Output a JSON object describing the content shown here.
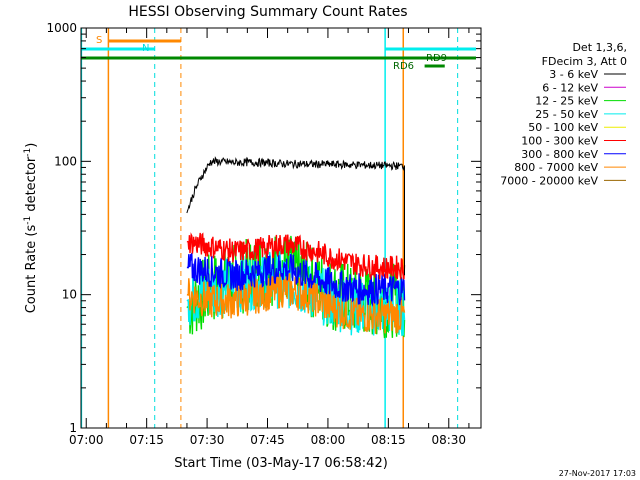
{
  "chart_data": {
    "type": "line",
    "title": "HESSI Observing Summary Count Rates",
    "xlabel": "Start Time (03-May-17 06:58:42)",
    "ylabel_main": "Count Rate (s",
    "ylabel_sup1": "-1",
    "ylabel_mid": " detector",
    "ylabel_sup2": "-1",
    "ylabel_end": ")",
    "y_scale": "log",
    "xlim": [
      "06:58:42",
      "08:37"
    ],
    "ylim": [
      1,
      1000
    ],
    "x_ticks": [
      "07:00",
      "07:15",
      "07:30",
      "07:45",
      "08:00",
      "08:15",
      "08:30"
    ],
    "y_ticks": [
      "1",
      "10",
      "100",
      "1000"
    ],
    "x_tick_minutes": [
      0,
      15,
      30,
      45,
      60,
      75,
      90
    ],
    "y_tick_values": [
      1,
      10,
      100,
      1000
    ],
    "legend_title_1": "Det 1,3,6,",
    "legend_title_2": "FDecim 3, Att 0",
    "legend_position": "right",
    "grid": false,
    "series": [
      {
        "name": "3 - 6 keV",
        "color": "#000000",
        "start": "07:25",
        "end": "08:19",
        "values": [
          41,
          100,
          98,
          98,
          96,
          95,
          95,
          94,
          93,
          92
        ]
      },
      {
        "name": "6 - 12 keV",
        "color": "#cc00cc",
        "values": []
      },
      {
        "name": "12 - 25 keV",
        "color": "#00dd00",
        "start": "07:25",
        "end": "08:19",
        "values": [
          8,
          11,
          13,
          15,
          16,
          13,
          10,
          9,
          9,
          9
        ]
      },
      {
        "name": "25 - 50 keV",
        "color": "#00eeee",
        "start": "07:25",
        "end": "08:19",
        "values": [
          9,
          11,
          12,
          13,
          13,
          11,
          9,
          8,
          8,
          8
        ]
      },
      {
        "name": "50 - 100 keV",
        "color": "#eeee00",
        "values": []
      },
      {
        "name": "100 - 300 keV",
        "color": "#ff0000",
        "start": "07:25",
        "end": "08:19",
        "values": [
          25,
          23,
          21,
          22,
          24,
          22,
          19,
          17,
          16,
          16
        ]
      },
      {
        "name": "300 - 800 keV",
        "color": "#0000ff",
        "start": "07:25",
        "end": "08:19",
        "values": [
          16,
          15,
          14,
          15,
          16,
          14,
          12,
          11,
          11,
          11
        ]
      },
      {
        "name": "800 - 7000 keV",
        "color": "#ff8800",
        "start": "07:25",
        "end": "08:19",
        "values": [
          10,
          9,
          9,
          10,
          11,
          10,
          8,
          7,
          7,
          7
        ]
      },
      {
        "name": "7000 - 20000 keV",
        "color": "#996600",
        "values": []
      }
    ],
    "annotations": {
      "S_label": "S",
      "N_label": "N",
      "RD9_label": "RD9",
      "RD6_label": "RD6"
    }
  },
  "footer_date": "27-Nov-2017 17:03"
}
